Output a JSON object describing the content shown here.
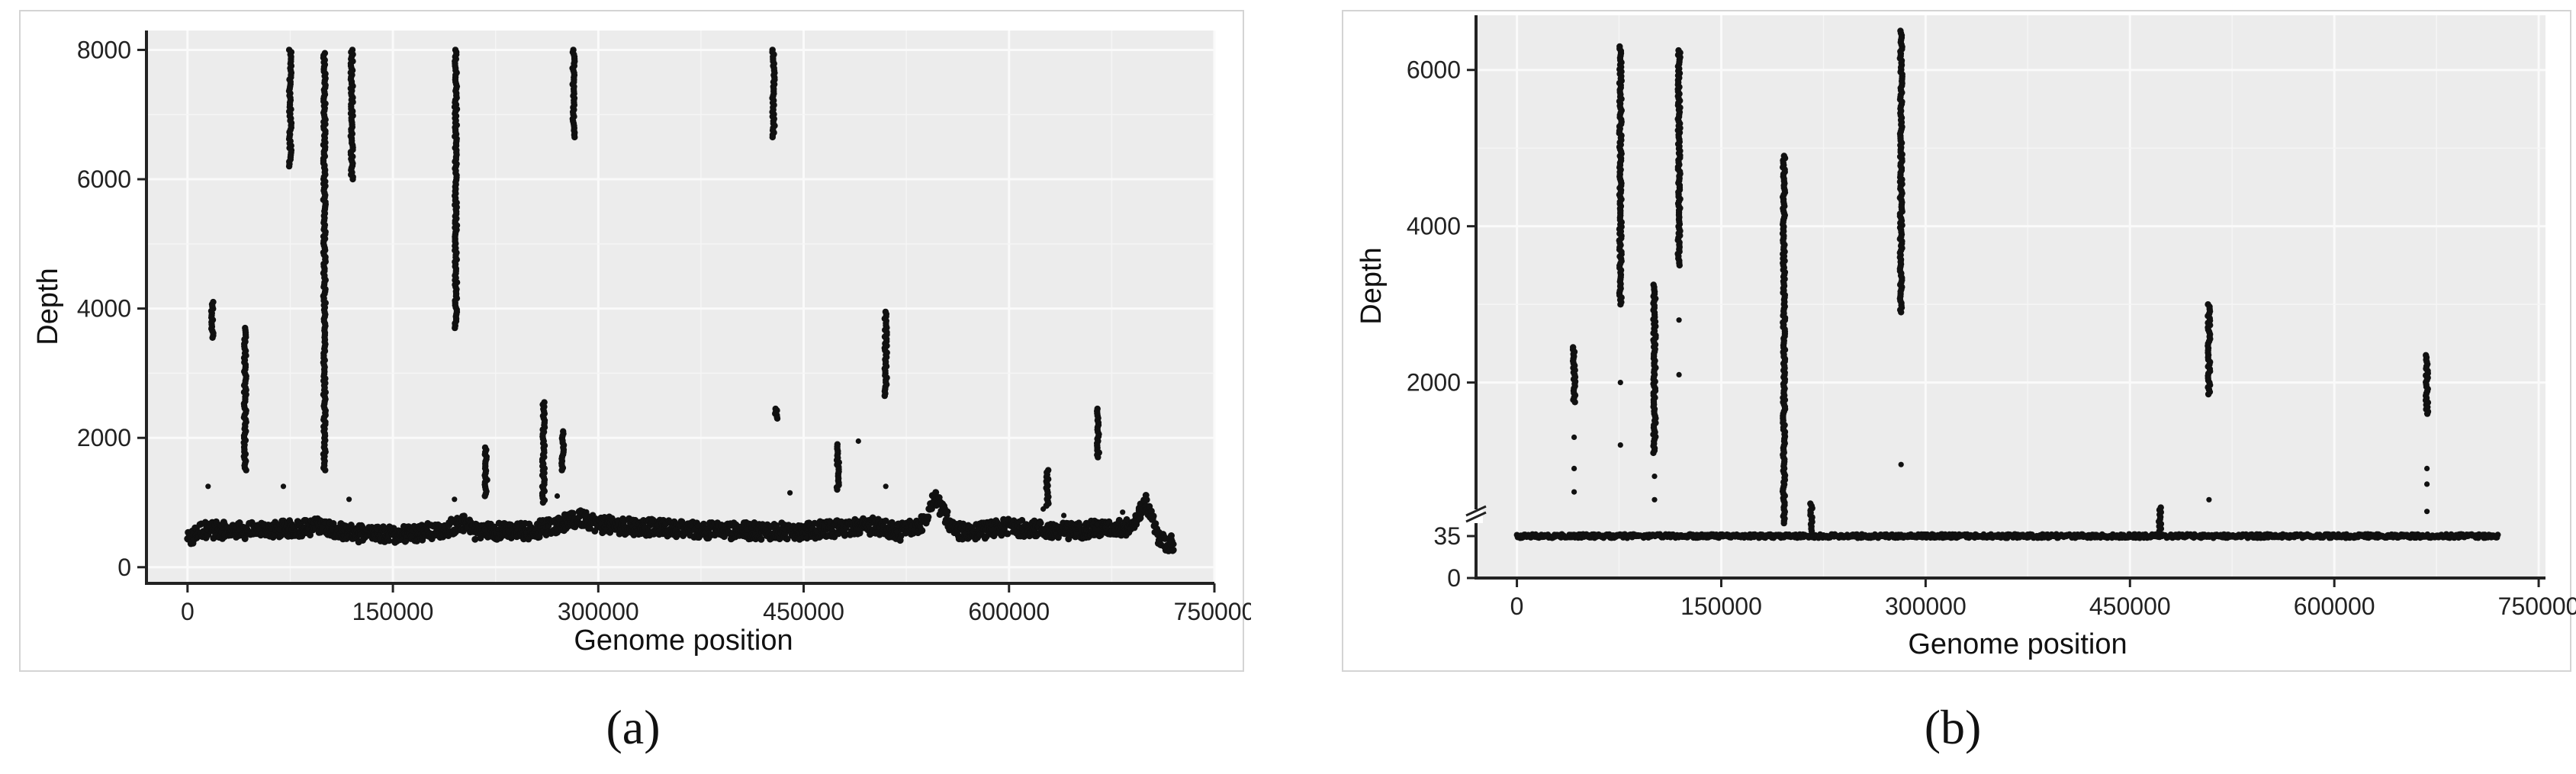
{
  "chart_data": [
    {
      "type": "scatter",
      "panel_label": "(a)",
      "xlabel": "Genome position",
      "ylabel": "Depth",
      "xlim": [
        -30000,
        750000
      ],
      "ylim": [
        -250,
        8300
      ],
      "xticks": [
        0,
        150000,
        300000,
        450000,
        600000,
        750000
      ],
      "xtick_labels": [
        "0",
        "150000",
        "300000",
        "450000",
        "600000",
        "750000"
      ],
      "yticks": [
        0,
        2000,
        4000,
        6000,
        8000
      ],
      "ytick_labels": [
        "0",
        "2000",
        "4000",
        "6000",
        "8000"
      ],
      "grid": true,
      "baseline": [
        [
          0,
          400
        ],
        [
          10000,
          580
        ],
        [
          40000,
          560
        ],
        [
          80000,
          600
        ],
        [
          100000,
          640
        ],
        [
          120000,
          520
        ],
        [
          150000,
          500
        ],
        [
          180000,
          560
        ],
        [
          200000,
          660
        ],
        [
          205000,
          700
        ],
        [
          210000,
          560
        ],
        [
          250000,
          560
        ],
        [
          290000,
          760
        ],
        [
          300000,
          660
        ],
        [
          350000,
          600
        ],
        [
          400000,
          560
        ],
        [
          450000,
          560
        ],
        [
          500000,
          640
        ],
        [
          520000,
          540
        ],
        [
          540000,
          700
        ],
        [
          545000,
          1080
        ],
        [
          550000,
          920
        ],
        [
          560000,
          560
        ],
        [
          580000,
          560
        ],
        [
          600000,
          620
        ],
        [
          640000,
          560
        ],
        [
          690000,
          620
        ],
        [
          700000,
          1000
        ],
        [
          710000,
          400
        ],
        [
          720000,
          360
        ]
      ],
      "spikes": [
        {
          "x": 18000,
          "min": 3550,
          "max": 4100
        },
        {
          "x": 42000,
          "min": 1500,
          "max": 3700
        },
        {
          "x": 75000,
          "min": 6200,
          "max": 8000
        },
        {
          "x": 100000,
          "min": 1500,
          "max": 7950
        },
        {
          "x": 120000,
          "min": 6000,
          "max": 8000
        },
        {
          "x": 196000,
          "min": 3700,
          "max": 8000
        },
        {
          "x": 218000,
          "min": 1100,
          "max": 1850
        },
        {
          "x": 260000,
          "min": 1000,
          "max": 2550
        },
        {
          "x": 274000,
          "min": 1500,
          "max": 2100
        },
        {
          "x": 282000,
          "min": 6650,
          "max": 8000
        },
        {
          "x": 428000,
          "min": 6650,
          "max": 8000
        },
        {
          "x": 430000,
          "min": 2300,
          "max": 2450
        },
        {
          "x": 475000,
          "min": 1200,
          "max": 1900
        },
        {
          "x": 510000,
          "min": 2650,
          "max": 3950
        },
        {
          "x": 628000,
          "min": 950,
          "max": 1500
        },
        {
          "x": 665000,
          "min": 1700,
          "max": 2450
        }
      ],
      "points": [
        [
          15000,
          1250
        ],
        [
          70000,
          1250
        ],
        [
          118000,
          1050
        ],
        [
          195000,
          1050
        ],
        [
          270000,
          1100
        ],
        [
          440000,
          1150
        ],
        [
          490000,
          1950
        ],
        [
          510000,
          1250
        ],
        [
          625000,
          900
        ],
        [
          640000,
          800
        ],
        [
          683000,
          850
        ]
      ]
    },
    {
      "type": "scatter",
      "panel_label": "(b)",
      "xlabel": "Genome position",
      "ylabel": "Depth",
      "xlim": [
        -30000,
        755000
      ],
      "ylim": [
        0,
        6700
      ],
      "axis_break": true,
      "xticks": [
        0,
        150000,
        300000,
        450000,
        600000,
        750000
      ],
      "xtick_labels": [
        "0",
        "150000",
        "300000",
        "450000",
        "600000",
        "750000"
      ],
      "yticks": [
        0,
        35,
        2000,
        4000,
        6000
      ],
      "ytick_labels": [
        "0",
        "35",
        "2000",
        "4000",
        "6000"
      ],
      "grid": true,
      "baseline_depth": 35,
      "spikes": [
        {
          "x": 42000,
          "min": 1750,
          "max": 2450
        },
        {
          "x": 76000,
          "min": 3000,
          "max": 6300
        },
        {
          "x": 101000,
          "min": 1100,
          "max": 3250
        },
        {
          "x": 119000,
          "min": 3500,
          "max": 6250
        },
        {
          "x": 196000,
          "min": 200,
          "max": 4900
        },
        {
          "x": 216000,
          "min": 100,
          "max": 450
        },
        {
          "x": 282000,
          "min": 2900,
          "max": 6500
        },
        {
          "x": 472000,
          "min": 100,
          "max": 400
        },
        {
          "x": 508000,
          "min": 1850,
          "max": 3000
        },
        {
          "x": 668000,
          "min": 1600,
          "max": 2350
        }
      ],
      "points": [
        [
          42000,
          1300
        ],
        [
          42000,
          900
        ],
        [
          42000,
          600
        ],
        [
          76000,
          2000
        ],
        [
          76000,
          1200
        ],
        [
          101000,
          800
        ],
        [
          101000,
          500
        ],
        [
          119000,
          2800
        ],
        [
          119000,
          2100
        ],
        [
          282000,
          4250
        ],
        [
          282000,
          3550
        ],
        [
          282000,
          950
        ],
        [
          508000,
          500
        ],
        [
          668000,
          900
        ],
        [
          668000,
          700
        ],
        [
          668000,
          350
        ]
      ]
    }
  ]
}
